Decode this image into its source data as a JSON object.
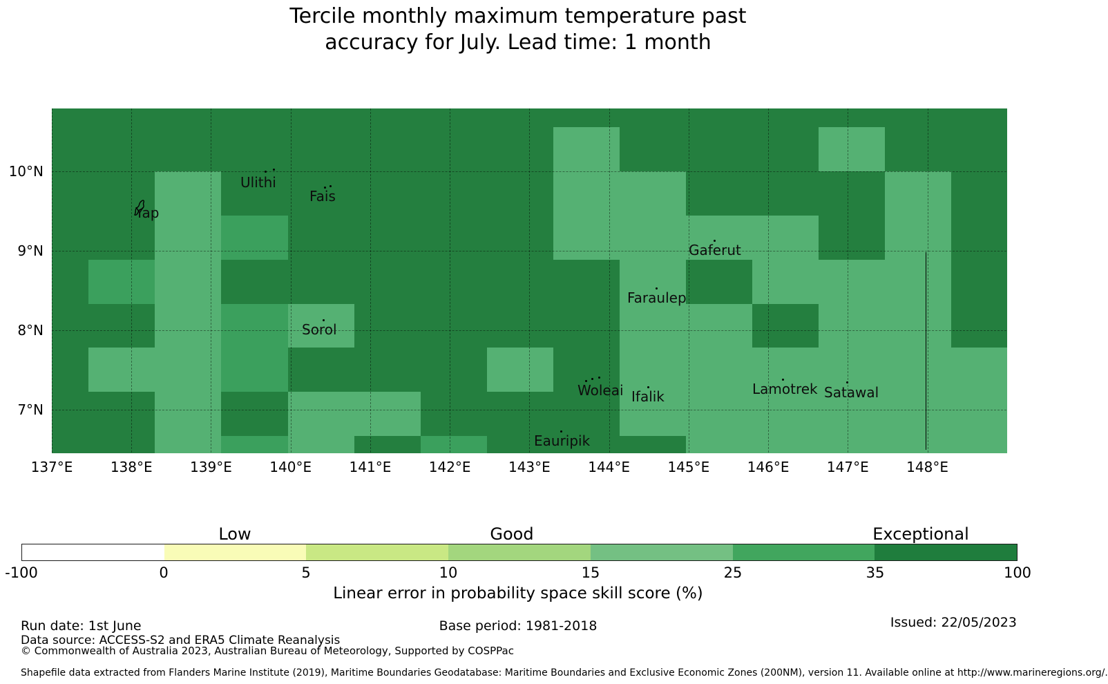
{
  "title": {
    "line1": "Tercile monthly maximum temperature past",
    "line2": "accuracy for July. Lead time: 1 month"
  },
  "xlabel": "Linear error in probability space skill score (%)",
  "chart_data": {
    "type": "heatmap",
    "title": "Tercile monthly maximum temperature past accuracy for July. Lead time: 1 month",
    "xlabel": "Linear error in probability space skill score (%)",
    "grid": true,
    "lon_range": [
      137.0,
      148.993
    ],
    "lat_range": [
      6.457,
      10.793
    ],
    "lon_edges": [
      137.0,
      137.464,
      138.297,
      139.13,
      139.964,
      140.797,
      141.63,
      142.464,
      143.297,
      144.13,
      144.964,
      145.797,
      146.63,
      147.464,
      148.297,
      148.993
    ],
    "lat_edges": [
      10.793,
      10.556,
      10.0,
      9.444,
      8.889,
      8.333,
      7.778,
      7.222,
      6.667,
      6.457
    ],
    "rows_top_to_bottom": [
      "DDDDDDDDDDDDDDD",
      "DDDDDDDDLDDDLDD",
      "DDLDDDDDLLDDDLD",
      "DDLMDDDDLLLLDLD",
      "DMLDDDDDDLDLLLD",
      "DDLMLDDDDLLDLLD",
      "DLLMDDDLDLLLLLL",
      "DDLDLLDDDLLLLLL",
      "DDLMLDMDDDLLLLL"
    ],
    "value_legend": {
      "D": "35-100 (Exceptional)",
      "M": "25-35",
      "L": "15-25"
    },
    "color_map": {
      "D": "#247f3f",
      "M": "#3ba05d",
      "L": "#55b173"
    },
    "x_ticks": [
      {
        "label": "137°E",
        "lon": 137
      },
      {
        "label": "138°E",
        "lon": 138
      },
      {
        "label": "139°E",
        "lon": 139
      },
      {
        "label": "140°E",
        "lon": 140
      },
      {
        "label": "141°E",
        "lon": 141
      },
      {
        "label": "142°E",
        "lon": 142
      },
      {
        "label": "143°E",
        "lon": 143
      },
      {
        "label": "144°E",
        "lon": 144
      },
      {
        "label": "145°E",
        "lon": 145
      },
      {
        "label": "146°E",
        "lon": 146
      },
      {
        "label": "147°E",
        "lon": 147
      },
      {
        "label": "148°E",
        "lon": 148
      }
    ],
    "y_ticks": [
      {
        "label": "10°N",
        "lat": 10
      },
      {
        "label": "9°N",
        "lat": 9
      },
      {
        "label": "8°N",
        "lat": 8
      },
      {
        "label": "7°N",
        "lat": 7
      }
    ],
    "islands": [
      {
        "name": "Yap",
        "label_x": 196,
        "label_y": 296,
        "outline": {
          "x": 191,
          "y": 286,
          "w": 28,
          "h": 28
        },
        "dots": []
      },
      {
        "name": "Ulithi",
        "label_x": 348,
        "label_y": 252,
        "dots": [
          [
            395,
            244
          ],
          [
            383,
            247
          ]
        ]
      },
      {
        "name": "Fais",
        "label_x": 448,
        "label_y": 272,
        "dots": [
          [
            469,
            270
          ],
          [
            477,
            268
          ]
        ]
      },
      {
        "name": "Sorol",
        "label_x": 437,
        "label_y": 465,
        "dots": [
          [
            467,
            462
          ]
        ]
      },
      {
        "name": "Gaferut",
        "label_x": 997,
        "label_y": 350,
        "dots": [
          [
            1033,
            347
          ]
        ]
      },
      {
        "name": "Faraulep",
        "label_x": 908,
        "label_y": 419,
        "dots": [
          [
            949,
            416
          ]
        ]
      },
      {
        "name": "Woleai",
        "label_x": 836,
        "label_y": 553,
        "dots": [
          [
            856,
            547
          ],
          [
            866,
            545
          ],
          [
            847,
            550
          ]
        ]
      },
      {
        "name": "Ifalik",
        "label_x": 914,
        "label_y": 562,
        "dots": [
          [
            937,
            559
          ]
        ]
      },
      {
        "name": "Eauripik",
        "label_x": 773,
        "label_y": 626,
        "dots": [
          [
            811,
            623
          ]
        ]
      },
      {
        "name": "Lamotrek",
        "label_x": 1089,
        "label_y": 551,
        "dots": [
          [
            1132,
            548
          ]
        ]
      },
      {
        "name": "Satawal",
        "label_x": 1193,
        "label_y": 556,
        "dots": [
          [
            1225,
            552
          ]
        ]
      }
    ],
    "eez_line": {
      "x": 1340,
      "y1": 365,
      "y2": 651
    }
  },
  "colorbar": {
    "tick_labels": [
      "-100",
      "0",
      "5",
      "10",
      "15",
      "25",
      "35",
      "100"
    ],
    "bin_colors": [
      "#ffffff",
      "#f9fcb7",
      "#c9e884",
      "#a3d67e",
      "#74c083",
      "#41a65e",
      "#1f7d3d"
    ],
    "category_labels": [
      {
        "text": "Low",
        "x": 340
      },
      {
        "text": "Good",
        "x": 741
      },
      {
        "text": "Exceptional",
        "x": 1333
      }
    ]
  },
  "footer": {
    "run_date": "Run date: 1st June",
    "base_period": "Base period: 1981-2018",
    "issued": "Issued: 22/05/2023",
    "data_source": "Data source: ACCESS-S2 and ERA5 Climate Reanalysis",
    "copyright": "© Commonwealth of Australia 2023, Australian Bureau of Meteorology, Supported by COSPPac",
    "shapefile": "Shapefile data extracted from Flanders Marine Institute (2019), Maritime Boundaries Geodatabase: Maritime Boundaries and Exclusive Economic Zones (200NM), version 11. Available online at http://www.marineregions.org/."
  }
}
